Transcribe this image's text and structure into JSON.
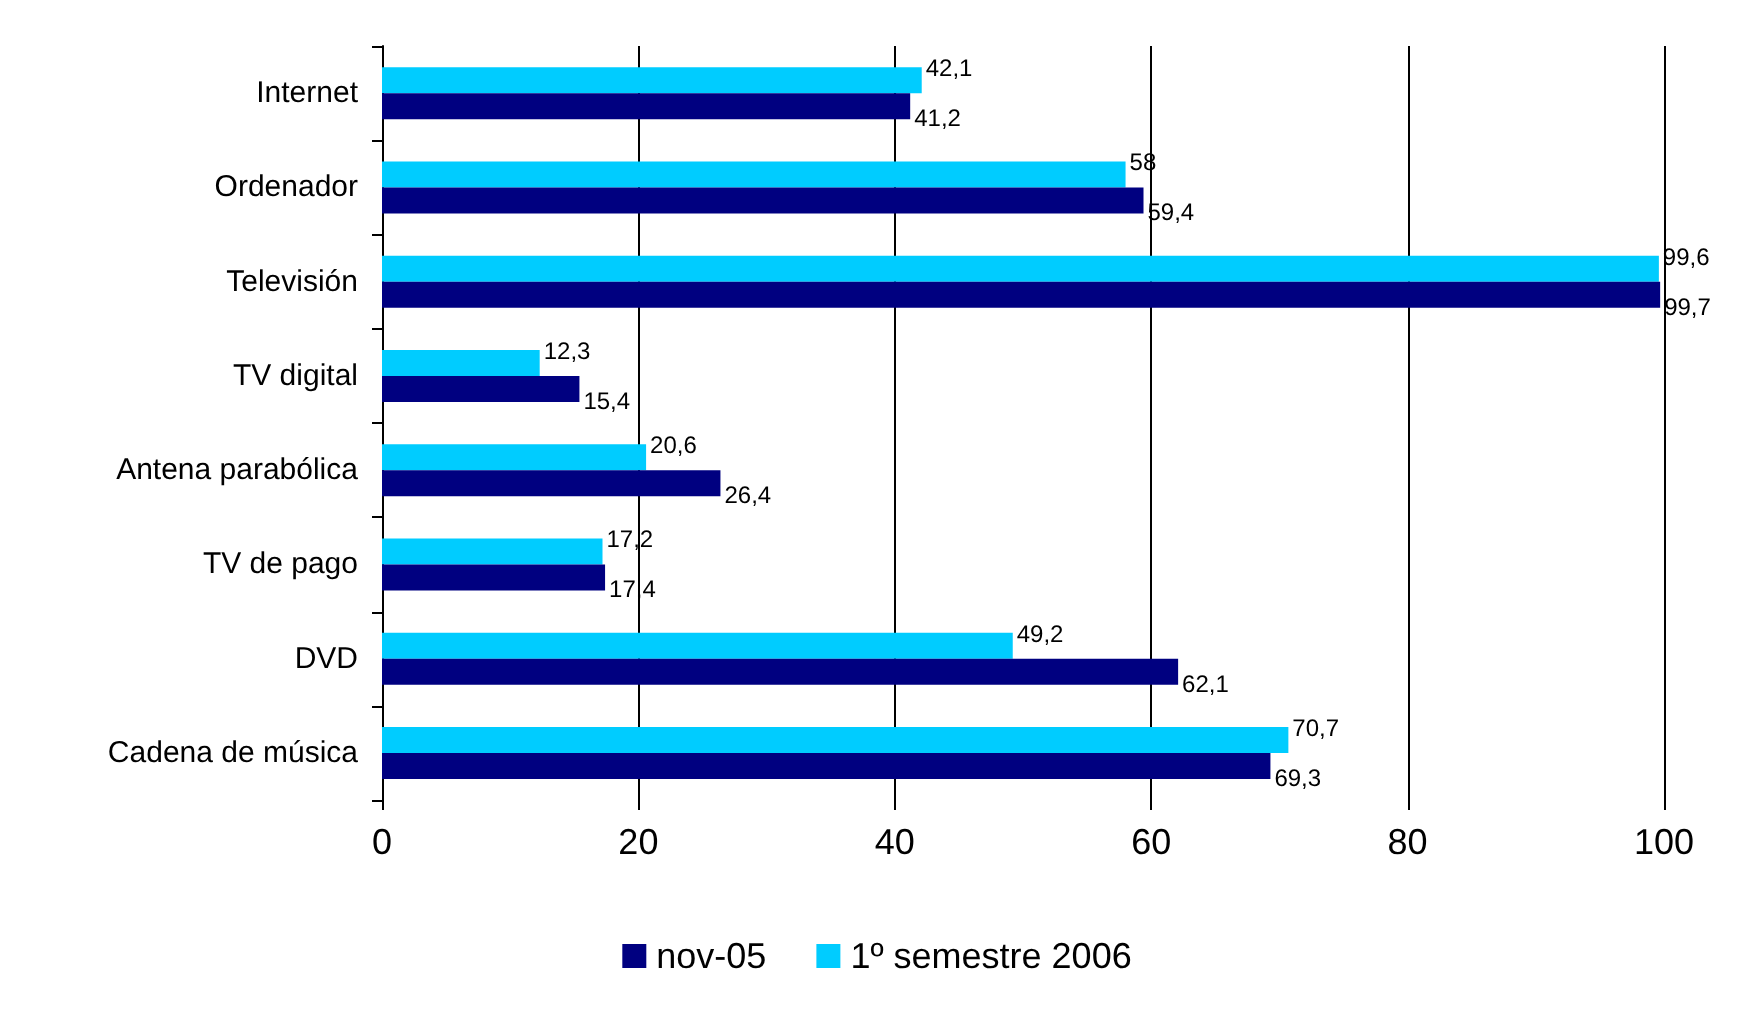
{
  "chart_data": {
    "type": "bar",
    "orientation": "horizontal",
    "categories": [
      "Internet",
      "Ordenador",
      "Televisión",
      "TV digital",
      "Antena parabólica",
      "TV de pago",
      "DVD",
      "Cadena de música"
    ],
    "series": [
      {
        "name": "nov-05",
        "color": "#000080",
        "values": [
          41.2,
          59.4,
          99.7,
          15.4,
          26.4,
          17.4,
          62.1,
          69.3
        ],
        "value_labels": [
          "41,2",
          "59,4",
          "99,7",
          "15,4",
          "26,4",
          "17,4",
          "62,1",
          "69,3"
        ]
      },
      {
        "name": "1º semestre 2006",
        "color": "#00ccff",
        "values": [
          42.1,
          58,
          99.6,
          12.3,
          20.6,
          17.2,
          49.2,
          70.7
        ],
        "value_labels": [
          "42,1",
          "58",
          "99,6",
          "12,3",
          "20,6",
          "17,2",
          "49,2",
          "70,7"
        ]
      }
    ],
    "xlim": [
      0,
      100
    ],
    "xticks": [
      0,
      20,
      40,
      60,
      80,
      100
    ],
    "grid": "x",
    "legend": "bottom"
  }
}
